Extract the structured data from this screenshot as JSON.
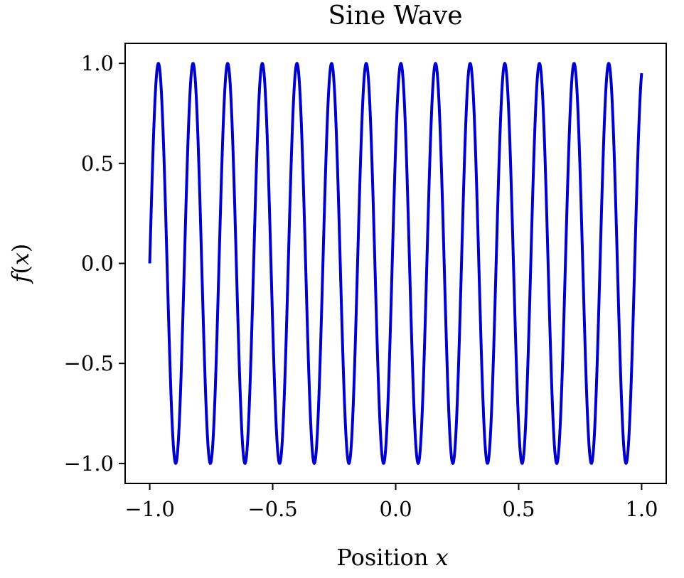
{
  "chart_data": {
    "type": "line",
    "title": "Sine Wave",
    "xlabel": "Position x",
    "ylabel": "f(x)",
    "xlim": [
      -1.1,
      1.1
    ],
    "ylim": [
      -1.1,
      1.1
    ],
    "xticks": [
      -1.0,
      -0.5,
      0.0,
      0.5,
      1.0
    ],
    "yticks": [
      -1.0,
      -0.5,
      0.0,
      0.5,
      1.0
    ],
    "xtick_labels": [
      "−1.0",
      "−0.5",
      "0.0",
      "0.5",
      "1.0"
    ],
    "ytick_labels": [
      "−1.0",
      "−0.5",
      "0.0",
      "0.5",
      "1.0"
    ],
    "grid": false,
    "legend": "none",
    "series": [
      {
        "function": "sin(2π·7.1·(x+1))",
        "amplitude": 1.0,
        "frequency": 7.1,
        "x_range": [
          -1.0,
          1.0
        ],
        "color": "#0000cc"
      }
    ]
  }
}
